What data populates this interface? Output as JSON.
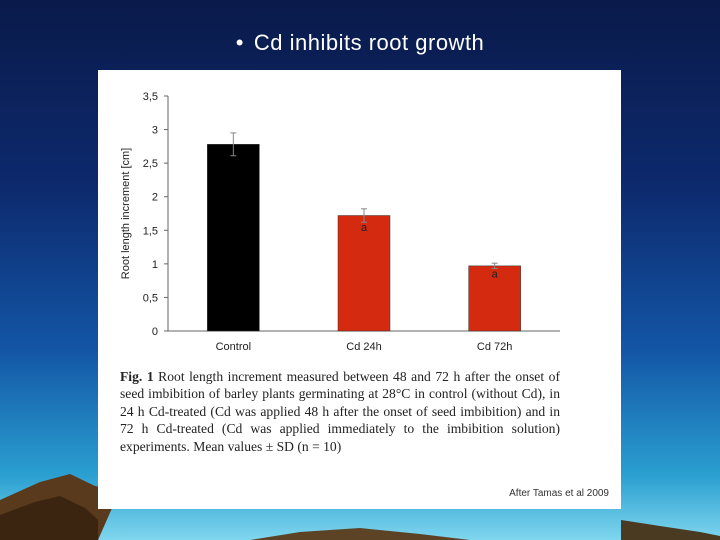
{
  "slide": {
    "bullet": "•",
    "title": "Cd inhibits root growth"
  },
  "figure": {
    "caption_label": "Fig. 1",
    "caption_text": "Root length increment measured between 48 and 72 h after the onset of seed imbibition of barley plants germinating at 28°C in control (without Cd), in 24 h Cd-treated (Cd was applied 48 h after the onset of seed imbibition) and in 72 h Cd-treated (Cd was applied immediately to the imbibition solution) experiments. Mean values ± SD (n = 10)",
    "credit": "After Tamas et al 2009"
  },
  "colors": {
    "control": "#000000",
    "cd": "#d42a10",
    "axis": "#666666"
  },
  "chart_data": {
    "type": "bar",
    "title": "",
    "xlabel": "",
    "ylabel": "Root length increment [cm]",
    "categories": [
      "Control",
      "Cd 24h",
      "Cd 72h"
    ],
    "values": [
      2.78,
      1.72,
      0.97
    ],
    "errors": [
      0.17,
      0.1,
      0.04
    ],
    "annotations": [
      "",
      "a",
      "a"
    ],
    "ylim": [
      0,
      3.5
    ],
    "yticks": [
      "0",
      "0,5",
      "1",
      "1,5",
      "2",
      "2,5",
      "3",
      "3,5"
    ],
    "grid": false
  }
}
